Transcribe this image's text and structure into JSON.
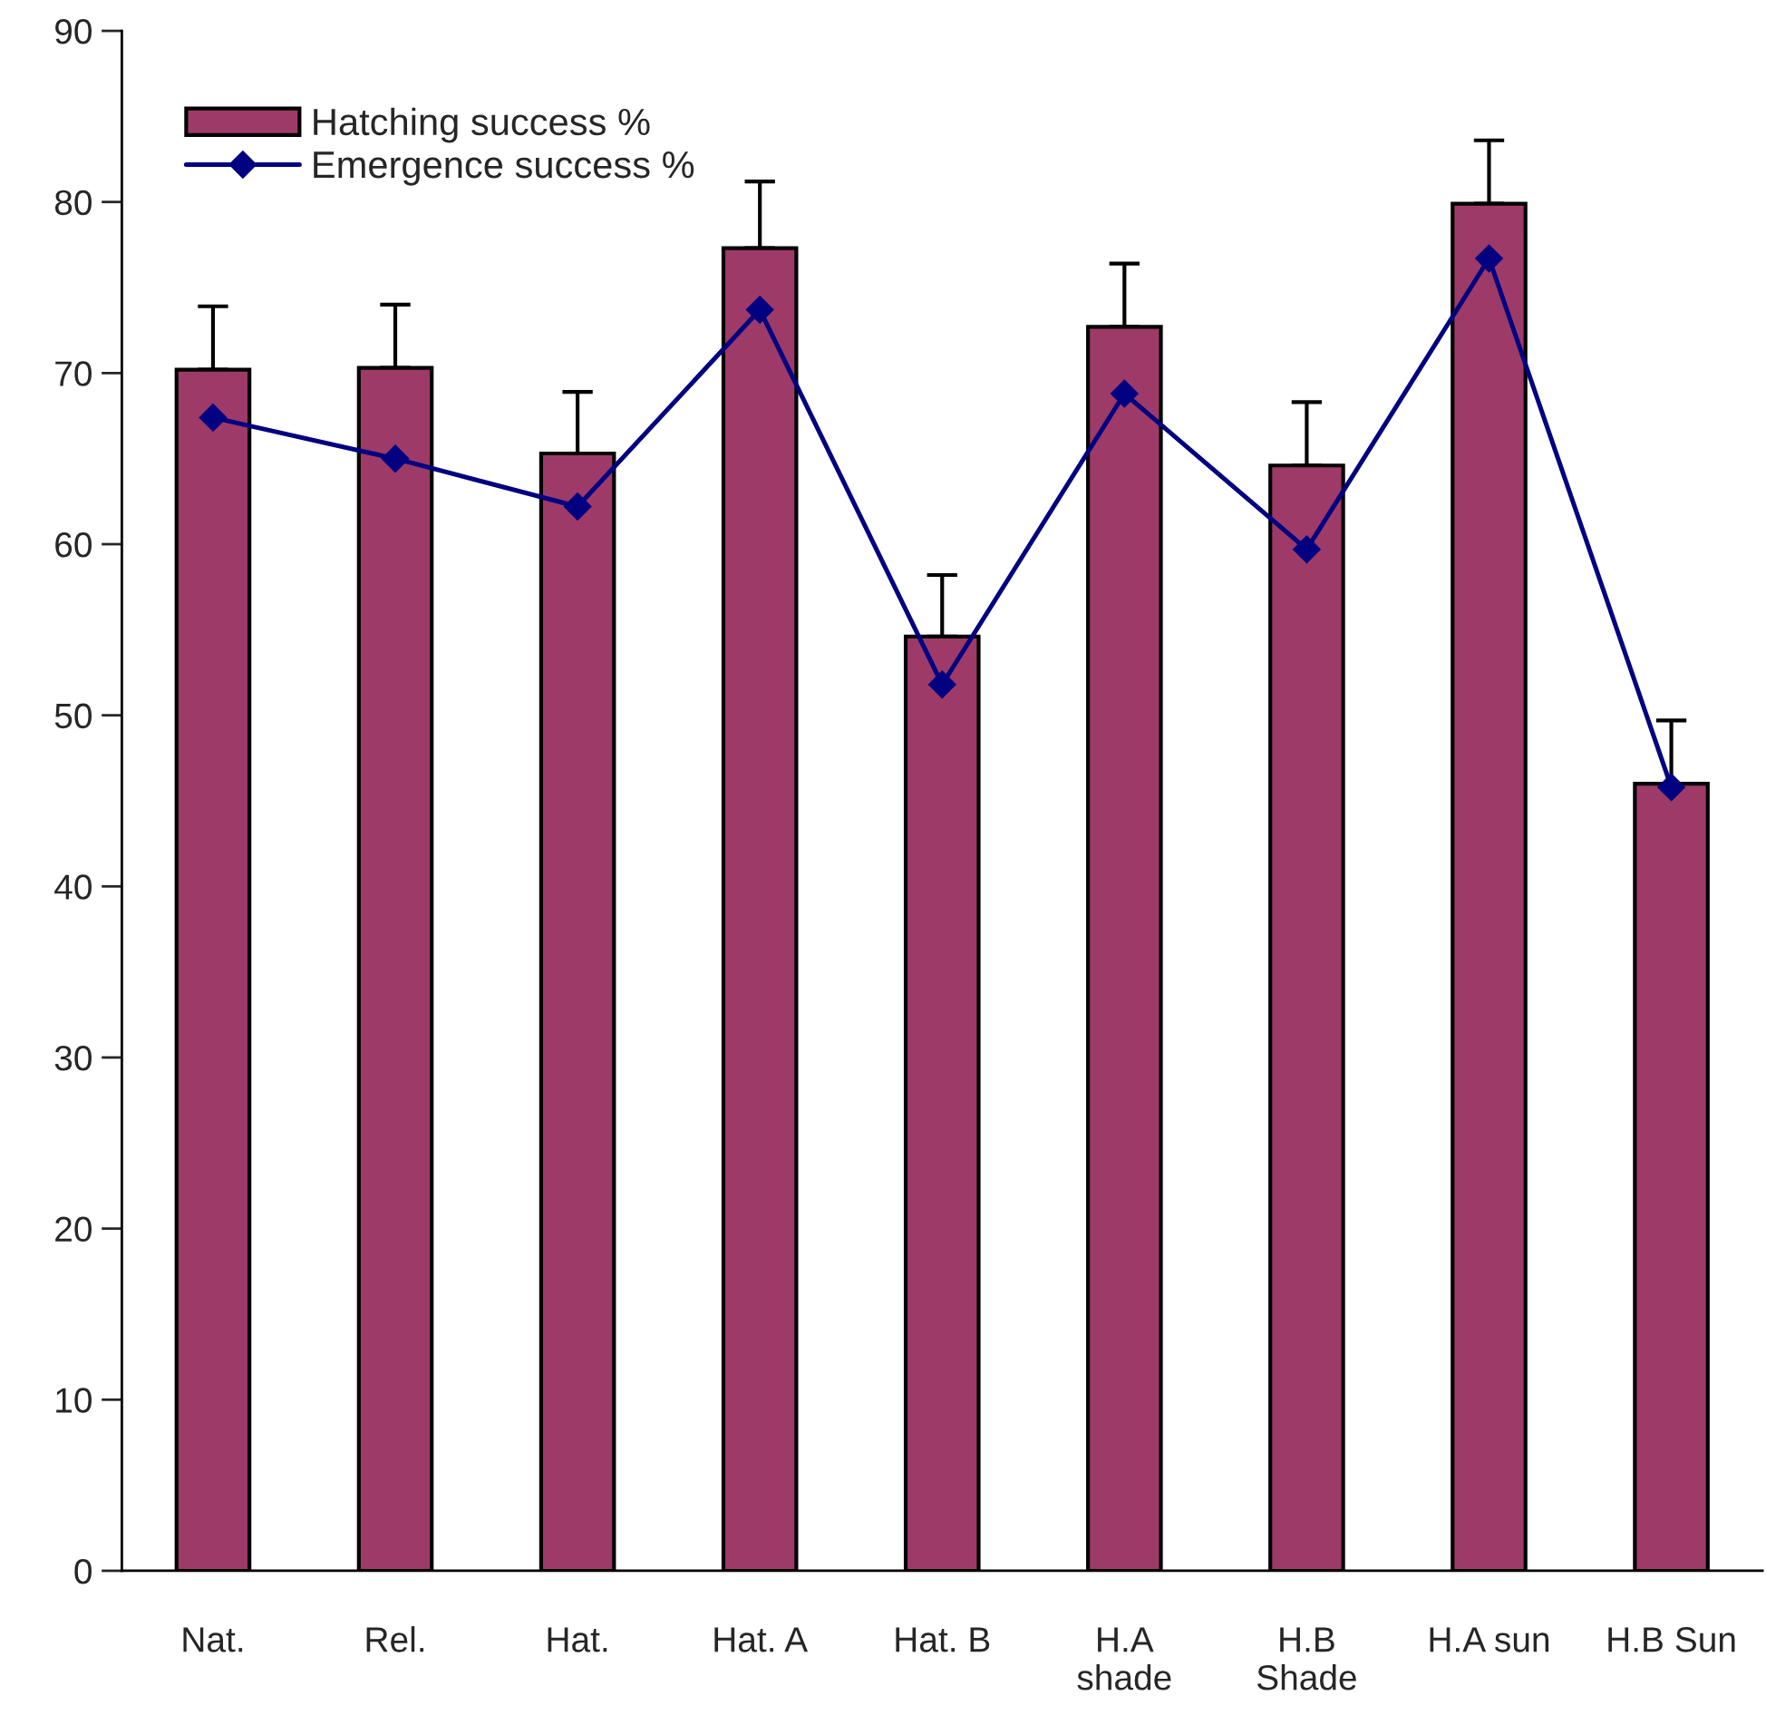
{
  "chart_data": {
    "type": "bar",
    "categories": [
      "Nat.",
      "Rel.",
      "Hat.",
      "Hat. A",
      "Hat. B",
      "H.A\nshade",
      "H.B\nShade",
      "H.A sun",
      "H.B Sun"
    ],
    "series": [
      {
        "name": "Hatching success %",
        "color": "#9e3a68",
        "values": [
          70.2,
          70.3,
          65.3,
          77.3,
          54.6,
          72.7,
          64.6,
          79.9,
          46.0
        ],
        "errors": [
          [
            70.2,
            73.9
          ],
          [
            70.3,
            74.0
          ],
          [
            65.3,
            68.9
          ],
          [
            77.3,
            81.2
          ],
          [
            54.6,
            58.2
          ],
          [
            72.7,
            76.4
          ],
          [
            64.6,
            68.3
          ],
          [
            79.9,
            83.6
          ],
          [
            46.0,
            49.7
          ]
        ]
      },
      {
        "name": "Emergence success %",
        "type": "line",
        "color": "#000080",
        "marker": "diamond",
        "values": [
          67.4,
          65.0,
          62.2,
          73.7,
          51.8,
          68.8,
          59.7,
          76.7,
          45.8
        ]
      }
    ],
    "ylim": [
      0,
      90
    ],
    "yticks": [
      0,
      10,
      20,
      30,
      40,
      50,
      60,
      70,
      80,
      90
    ],
    "grid": false,
    "legend": "top left"
  }
}
